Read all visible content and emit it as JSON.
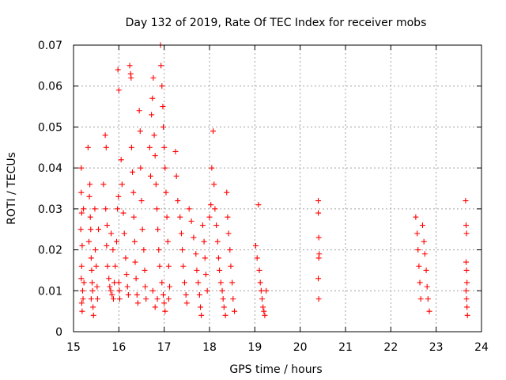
{
  "chart_data": {
    "type": "scatter",
    "title": "Day 132 of 2019, Rate Of TEC Index for receiver mobs",
    "xlabel": "GPS time / hours",
    "ylabel": "ROTI / TECUs",
    "xlim": [
      15,
      24
    ],
    "ylim": [
      0,
      0.07
    ],
    "xticks": [
      15,
      16,
      17,
      18,
      19,
      20,
      21,
      22,
      23,
      24
    ],
    "xtick_labels": [
      "15",
      "16",
      "17",
      "18",
      "19",
      "20",
      "21",
      "22",
      "23",
      "24"
    ],
    "yticks": [
      0,
      0.01,
      0.02,
      0.03,
      0.04,
      0.05,
      0.06,
      0.07
    ],
    "ytick_labels": [
      "0",
      "0.01",
      "0.02",
      "0.03",
      "0.04",
      "0.05",
      "0.06",
      "0.07"
    ],
    "grid": true,
    "marker": "+",
    "marker_color": "#ff0000",
    "series": [
      {
        "name": "ROTI",
        "points": [
          [
            15.17,
            0.04
          ],
          [
            15.17,
            0.034
          ],
          [
            15.18,
            0.029
          ],
          [
            15.16,
            0.025
          ],
          [
            15.19,
            0.021
          ],
          [
            15.18,
            0.016
          ],
          [
            15.17,
            0.013
          ],
          [
            15.2,
            0.01
          ],
          [
            15.18,
            0.007
          ],
          [
            15.19,
            0.005
          ],
          [
            15.22,
            0.03
          ],
          [
            15.23,
            0.012
          ],
          [
            15.21,
            0.008
          ],
          [
            15.32,
            0.045
          ],
          [
            15.36,
            0.036
          ],
          [
            15.35,
            0.033
          ],
          [
            15.37,
            0.028
          ],
          [
            15.38,
            0.025
          ],
          [
            15.34,
            0.022
          ],
          [
            15.39,
            0.018
          ],
          [
            15.4,
            0.015
          ],
          [
            15.41,
            0.012
          ],
          [
            15.42,
            0.01
          ],
          [
            15.39,
            0.008
          ],
          [
            15.43,
            0.006
          ],
          [
            15.44,
            0.004
          ],
          [
            15.47,
            0.03
          ],
          [
            15.48,
            0.02
          ],
          [
            15.5,
            0.016
          ],
          [
            15.52,
            0.011
          ],
          [
            15.53,
            0.008
          ],
          [
            15.55,
            0.025
          ],
          [
            15.66,
            0.036
          ],
          [
            15.7,
            0.048
          ],
          [
            15.72,
            0.045
          ],
          [
            15.71,
            0.03
          ],
          [
            15.74,
            0.026
          ],
          [
            15.73,
            0.021
          ],
          [
            15.75,
            0.016
          ],
          [
            15.78,
            0.013
          ],
          [
            15.8,
            0.011
          ],
          [
            15.82,
            0.01
          ],
          [
            15.85,
            0.009
          ],
          [
            15.88,
            0.008
          ],
          [
            15.9,
            0.012
          ],
          [
            15.92,
            0.016
          ],
          [
            15.95,
            0.022
          ],
          [
            15.97,
            0.03
          ],
          [
            15.99,
            0.033
          ],
          [
            16.0,
            0.012
          ],
          [
            16.01,
            0.01
          ],
          [
            16.02,
            0.008
          ],
          [
            15.87,
            0.02
          ],
          [
            15.83,
            0.024
          ],
          [
            15.98,
            0.064
          ],
          [
            16.0,
            0.059
          ],
          [
            16.05,
            0.042
          ],
          [
            16.07,
            0.036
          ],
          [
            16.1,
            0.029
          ],
          [
            16.12,
            0.024
          ],
          [
            16.15,
            0.018
          ],
          [
            16.17,
            0.014
          ],
          [
            16.19,
            0.011
          ],
          [
            16.21,
            0.009
          ],
          [
            16.24,
            0.065
          ],
          [
            16.26,
            0.063
          ],
          [
            16.27,
            0.062
          ],
          [
            16.28,
            0.045
          ],
          [
            16.3,
            0.039
          ],
          [
            16.32,
            0.034
          ],
          [
            16.33,
            0.028
          ],
          [
            16.35,
            0.022
          ],
          [
            16.36,
            0.017
          ],
          [
            16.38,
            0.013
          ],
          [
            16.4,
            0.009
          ],
          [
            16.42,
            0.007
          ],
          [
            16.45,
            0.054
          ],
          [
            16.47,
            0.049
          ],
          [
            16.48,
            0.04
          ],
          [
            16.5,
            0.032
          ],
          [
            16.52,
            0.025
          ],
          [
            16.55,
            0.02
          ],
          [
            16.57,
            0.015
          ],
          [
            16.58,
            0.011
          ],
          [
            16.6,
            0.008
          ],
          [
            16.68,
            0.045
          ],
          [
            16.7,
            0.038
          ],
          [
            16.72,
            0.053
          ],
          [
            16.74,
            0.057
          ],
          [
            16.76,
            0.062
          ],
          [
            16.78,
            0.048
          ],
          [
            16.8,
            0.043
          ],
          [
            16.82,
            0.036
          ],
          [
            16.84,
            0.03
          ],
          [
            16.86,
            0.025
          ],
          [
            16.88,
            0.02
          ],
          [
            16.9,
            0.016
          ],
          [
            16.92,
            0.07
          ],
          [
            16.93,
            0.065
          ],
          [
            16.95,
            0.06
          ],
          [
            16.97,
            0.055
          ],
          [
            16.98,
            0.05
          ],
          [
            17.0,
            0.045
          ],
          [
            17.02,
            0.04
          ],
          [
            17.04,
            0.034
          ],
          [
            17.06,
            0.028
          ],
          [
            17.08,
            0.022
          ],
          [
            17.1,
            0.016
          ],
          [
            16.95,
            0.012
          ],
          [
            16.98,
            0.009
          ],
          [
            17.0,
            0.007
          ],
          [
            17.02,
            0.005
          ],
          [
            16.85,
            0.008
          ],
          [
            16.8,
            0.006
          ],
          [
            16.75,
            0.01
          ],
          [
            17.1,
            0.008
          ],
          [
            17.12,
            0.011
          ],
          [
            17.25,
            0.044
          ],
          [
            17.27,
            0.038
          ],
          [
            17.3,
            0.032
          ],
          [
            17.35,
            0.028
          ],
          [
            17.38,
            0.024
          ],
          [
            17.4,
            0.02
          ],
          [
            17.42,
            0.016
          ],
          [
            17.45,
            0.012
          ],
          [
            17.48,
            0.009
          ],
          [
            17.5,
            0.007
          ],
          [
            17.55,
            0.03
          ],
          [
            17.6,
            0.027
          ],
          [
            17.65,
            0.023
          ],
          [
            17.7,
            0.019
          ],
          [
            17.72,
            0.015
          ],
          [
            17.75,
            0.012
          ],
          [
            17.78,
            0.009
          ],
          [
            17.8,
            0.006
          ],
          [
            17.82,
            0.004
          ],
          [
            17.85,
            0.026
          ],
          [
            17.88,
            0.022
          ],
          [
            17.9,
            0.018
          ],
          [
            17.92,
            0.014
          ],
          [
            17.95,
            0.01
          ],
          [
            18.0,
            0.028
          ],
          [
            18.03,
            0.031
          ],
          [
            18.05,
            0.04
          ],
          [
            18.08,
            0.049
          ],
          [
            18.1,
            0.036
          ],
          [
            18.12,
            0.03
          ],
          [
            18.15,
            0.026
          ],
          [
            18.18,
            0.022
          ],
          [
            18.2,
            0.018
          ],
          [
            18.22,
            0.015
          ],
          [
            18.25,
            0.012
          ],
          [
            18.28,
            0.01
          ],
          [
            18.3,
            0.008
          ],
          [
            18.32,
            0.006
          ],
          [
            18.35,
            0.004
          ],
          [
            18.38,
            0.034
          ],
          [
            18.4,
            0.028
          ],
          [
            18.42,
            0.024
          ],
          [
            18.45,
            0.02
          ],
          [
            18.47,
            0.016
          ],
          [
            18.5,
            0.012
          ],
          [
            18.52,
            0.008
          ],
          [
            18.55,
            0.005
          ],
          [
            19.02,
            0.021
          ],
          [
            19.05,
            0.018
          ],
          [
            19.08,
            0.031
          ],
          [
            19.1,
            0.015
          ],
          [
            19.12,
            0.012
          ],
          [
            19.14,
            0.01
          ],
          [
            19.16,
            0.008
          ],
          [
            19.18,
            0.006
          ],
          [
            19.2,
            0.005
          ],
          [
            19.22,
            0.004
          ],
          [
            19.25,
            0.01
          ],
          [
            20.4,
            0.032
          ],
          [
            20.4,
            0.029
          ],
          [
            20.41,
            0.023
          ],
          [
            20.42,
            0.019
          ],
          [
            20.41,
            0.018
          ],
          [
            20.4,
            0.013
          ],
          [
            20.41,
            0.008
          ],
          [
            22.55,
            0.028
          ],
          [
            22.58,
            0.024
          ],
          [
            22.6,
            0.02
          ],
          [
            22.62,
            0.016
          ],
          [
            22.64,
            0.012
          ],
          [
            22.66,
            0.008
          ],
          [
            22.7,
            0.026
          ],
          [
            22.73,
            0.022
          ],
          [
            22.75,
            0.019
          ],
          [
            22.78,
            0.015
          ],
          [
            22.8,
            0.011
          ],
          [
            22.82,
            0.008
          ],
          [
            22.85,
            0.005
          ],
          [
            23.65,
            0.032
          ],
          [
            23.66,
            0.026
          ],
          [
            23.67,
            0.024
          ],
          [
            23.66,
            0.017
          ],
          [
            23.67,
            0.015
          ],
          [
            23.68,
            0.012
          ],
          [
            23.66,
            0.01
          ],
          [
            23.67,
            0.008
          ],
          [
            23.68,
            0.006
          ],
          [
            23.69,
            0.004
          ]
        ]
      }
    ]
  }
}
